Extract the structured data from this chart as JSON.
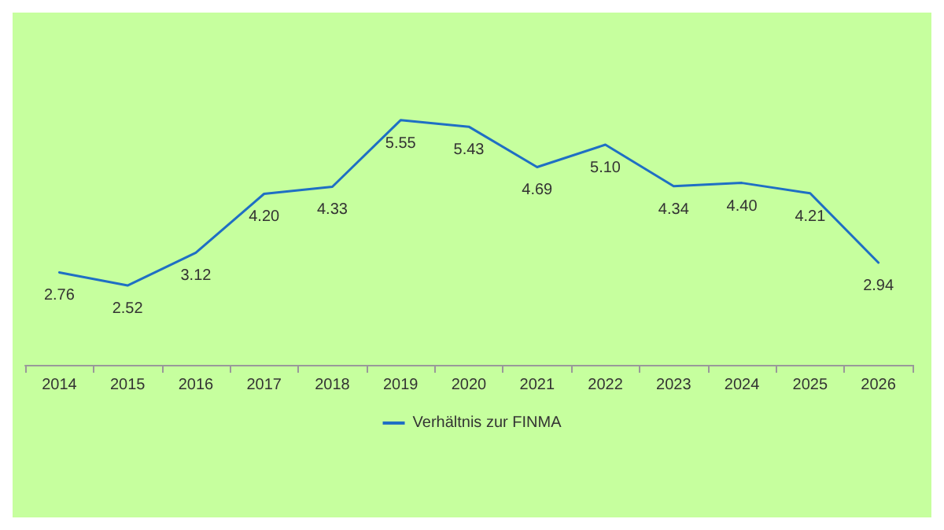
{
  "chart_data": {
    "type": "line",
    "categories": [
      "2014",
      "2015",
      "2016",
      "2017",
      "2018",
      "2019",
      "2020",
      "2021",
      "2022",
      "2023",
      "2024",
      "2025",
      "2026"
    ],
    "series": [
      {
        "name": "Verhältnis zur FINMA",
        "color": "#1f6fc4",
        "values": [
          2.76,
          2.52,
          3.12,
          4.2,
          4.33,
          5.55,
          5.43,
          4.69,
          5.1,
          4.34,
          4.4,
          4.21,
          2.94
        ],
        "value_labels": [
          "2.76",
          "2.52",
          "3.12",
          "4.20",
          "4.33",
          "5.55",
          "5.43",
          "4.69",
          "5.10",
          "4.34",
          "4.40",
          "4.21",
          "2.94"
        ]
      }
    ],
    "legend": "bottom",
    "grid": false,
    "marker": "none",
    "line_style": "solid"
  }
}
